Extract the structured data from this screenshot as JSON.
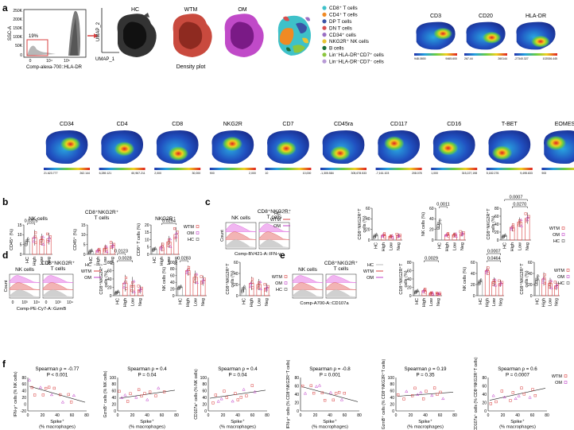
{
  "panels": {
    "a": "a",
    "b": "b",
    "c": "c",
    "d": "d",
    "e": "e",
    "f": "f"
  },
  "panel_a": {
    "facs": {
      "ylabel": "SSC-A",
      "yticks": [
        "250K",
        "200K",
        "150K",
        "100K",
        "50K",
        "0"
      ],
      "xlabel": "Comp-alexa-700::HLA-DR",
      "xticks": [
        "0",
        "10⁴",
        "10⁵"
      ],
      "gate": "19%"
    },
    "umap_x": "UMAP_1",
    "umap_y": "UMAP_2",
    "density_titles": [
      "HC",
      "WTM",
      "OM"
    ],
    "density_label": "Density plot",
    "legend": [
      "CD8⁺ T cells",
      "CD4⁺ T cells",
      "DP T cells",
      "DN T cells",
      "CD34⁺ cells",
      "NKG2R⁺ NK cells",
      "B cells",
      "Lin⁻HLA-DR⁺CD7⁺ cells",
      "Lin⁻HLA-DR⁻CD7⁻ cells"
    ],
    "legend_colors": [
      "#3ec1c9",
      "#f08a24",
      "#3a54a6",
      "#d94e4e",
      "#9a6fc4",
      "#e8c433",
      "#1a6e3a",
      "#8cc63f",
      "#b89ad6"
    ],
    "top_markers": [
      {
        "name": "CD3",
        "min": "948.0800",
        "max": "9465.600"
      },
      {
        "name": "CD20",
        "min": "267.44",
        "max": "260144"
      },
      {
        "name": "HLA-DR",
        "min": "-27340.327",
        "max": "102536.445"
      }
    ],
    "bottom_markers": [
      {
        "name": "CD34",
        "min": "21.623.777",
        "max": "262.144"
      },
      {
        "name": "CD4",
        "min": "6,289.121",
        "max": "60,967.211"
      },
      {
        "name": "CD8",
        "min": "2,000",
        "max": "30,000"
      },
      {
        "name": "NKG2R",
        "min": "900",
        "max": "2,000"
      },
      {
        "name": "CD7",
        "min": "10",
        "max": "10,000"
      },
      {
        "name": "CD45ra",
        "min": "-1,305.584",
        "max": "305,678.533"
      },
      {
        "name": "CD117",
        "min": "-7,161.103",
        "max": "208.078"
      },
      {
        "name": "CD16",
        "min": "1,000",
        "max": "315,227,198"
      },
      {
        "name": "T-BET",
        "min": "5,182.276",
        "max": "9,495.633"
      },
      {
        "name": "EOMES",
        "min": "900",
        "max": "2,180"
      }
    ]
  },
  "groups": [
    "HC",
    "High",
    "Low",
    "Neg"
  ],
  "legend_b": [
    "WTM",
    "OM",
    "HC"
  ],
  "panel_b": {
    "charts": [
      {
        "title": "NK cells",
        "ylabel": "CD45⁺ (%)",
        "yticks": [
          "0",
          "5",
          "10",
          "15"
        ],
        "ymax": 15,
        "values": [
          6.5,
          8.5,
          7.5,
          8.0
        ],
        "errs": [
          2,
          4,
          3,
          3
        ],
        "pvals": [
          {
            "text": "0.0315",
            "from": 0,
            "to": 1,
            "level": 0
          }
        ]
      },
      {
        "title": "CD8⁺NKG2R⁺\nT cells",
        "ylabel": "CD45⁺ (%)",
        "yticks": [
          "0",
          "5",
          "10",
          "15"
        ],
        "ymax": 15,
        "values": [
          1.5,
          2.0,
          3.0,
          4.5
        ],
        "errs": [
          1,
          1,
          2,
          2
        ],
        "pvals": []
      },
      {
        "title": "NKG2R⁺",
        "ylabel": "CD8⁺ T cells (%)",
        "yticks": [
          "0",
          "5",
          "10",
          "15",
          "20"
        ],
        "ymax": 20,
        "values": [
          3.5,
          5.0,
          8.5,
          13.5
        ],
        "errs": [
          1,
          3,
          4,
          5
        ],
        "pvals": [
          {
            "text": "0.0254",
            "from": 1,
            "to": 3,
            "level": 0
          }
        ]
      }
    ]
  },
  "panel_c": {
    "hist_titles": [
      "NK cells",
      "CD8⁺NKG2R⁺\nT cells"
    ],
    "hist_ylabel": "Count",
    "hist_xlabel": "Comp-BV421-A::IFN-γ",
    "charts": [
      {
        "title": "",
        "ylabel": "CD8⁺NKG2R⁺T\ncells (%)",
        "yticks": [
          "0",
          "20",
          "40",
          "60"
        ],
        "ymax": 60,
        "values": [
          8,
          9,
          7,
          8
        ],
        "errs": [
          4,
          5,
          3,
          4
        ],
        "pvals": []
      },
      {
        "title": "",
        "ylabel": "NK cells (%)",
        "yticks": [
          "0",
          "20",
          "40",
          "60"
        ],
        "ymax": 60,
        "values": [
          30,
          10,
          10,
          12
        ],
        "errs": [
          10,
          4,
          4,
          5
        ],
        "pvals": [
          {
            "text": "0.0011",
            "from": 0,
            "to": 1,
            "level": 0
          }
        ]
      },
      {
        "title": "",
        "ylabel": "CD8⁺NKG2R⁺T\ncells (%)",
        "yticks": [
          "0",
          "20",
          "40",
          "60",
          "80"
        ],
        "ymax": 80,
        "values": [
          10,
          32,
          45,
          55
        ],
        "errs": [
          4,
          10,
          12,
          14
        ],
        "pvals": [
          {
            "text": "0.0270",
            "from": 1,
            "to": 3,
            "level": 0
          },
          {
            "text": "0.0007",
            "from": 0,
            "to": 3,
            "level": 1
          }
        ]
      }
    ]
  },
  "panel_d": {
    "hist_titles": [
      "NK cells",
      "CD8⁺NKG2R⁺\nT cells"
    ],
    "hist_ylabel": "Count",
    "hist_xlabel": "Comp-PE-Cy7-A::GzmB",
    "hist_ticks": [
      "0",
      "10³",
      "10⁴"
    ],
    "charts": [
      {
        "title": "",
        "ylabel": "CD8⁺NKG2R⁺T\ncells (%)",
        "yticks": [
          "0",
          "20",
          "40",
          "60",
          "80"
        ],
        "ymax": 80,
        "values": [
          8,
          30,
          25,
          15
        ],
        "errs": [
          4,
          20,
          20,
          10
        ],
        "pvals": [
          {
            "text": "0.0028",
            "from": 0,
            "to": 2,
            "level": 0
          },
          {
            "text": "0.0123",
            "from": 0,
            "to": 1,
            "level": 1
          }
        ]
      },
      {
        "title": "",
        "ylabel": "NK cells (%)",
        "yticks": [
          "0",
          "20",
          "40",
          "60",
          "80",
          "100"
        ],
        "ymax": 100,
        "values": [
          25,
          75,
          55,
          45
        ],
        "errs": [
          5,
          15,
          20,
          15
        ],
        "pvals": [
          {
            "text": "0.0283",
            "from": 0,
            "to": 1,
            "level": 0
          }
        ]
      },
      {
        "title": "",
        "ylabel": "CD8⁺NKG2R⁺T\ncells (%)",
        "yticks": [
          "0",
          "20",
          "40",
          "60"
        ],
        "ymax": 60,
        "values": [
          12,
          22,
          20,
          14
        ],
        "errs": [
          6,
          12,
          10,
          8
        ],
        "pvals": []
      }
    ]
  },
  "panel_e": {
    "hist_titles": [
      "NK cells",
      "CD8⁺NKG2R⁺\nT cells"
    ],
    "hist_xlabel": "Comp-A700-A::CD107a",
    "charts": [
      {
        "title": "",
        "ylabel": "CD8⁺NKG2R⁺T\ncells (%)",
        "yticks": [
          "0",
          "20",
          "40",
          "60",
          "80"
        ],
        "ymax": 80,
        "values": [
          10,
          12,
          6,
          5
        ],
        "errs": [
          4,
          6,
          3,
          2
        ],
        "pvals": [
          {
            "text": "0.0029",
            "from": 1,
            "to": 3,
            "level": 0
          }
        ]
      },
      {
        "title": "",
        "ylabel": "NK cells (%)",
        "yticks": [
          "0",
          "20",
          "40",
          "60"
        ],
        "ymax": 60,
        "values": [
          25,
          45,
          25,
          22
        ],
        "errs": [
          5,
          8,
          8,
          6
        ],
        "pvals": [
          {
            "text": "0.0464",
            "from": 1,
            "to": 3,
            "level": 0
          },
          {
            "text": "0.0007",
            "from": 1,
            "to": 3,
            "level": 1
          }
        ]
      },
      {
        "title": "",
        "ylabel": "CD8⁺NKG2R⁺T\ncells (%)",
        "yticks": [
          "0",
          "20",
          "40",
          "60"
        ],
        "ymax": 60,
        "values": [
          28,
          30,
          22,
          18
        ],
        "errs": [
          10,
          12,
          10,
          8
        ],
        "pvals": []
      }
    ]
  },
  "panel_f": {
    "xlabel": "Spike⁺\n(% macrophages)",
    "legend": [
      "WTM",
      "OM"
    ],
    "charts": [
      {
        "stat": "Spearman ρ = -0.77",
        "p": "P < 0.001",
        "ylabel": "IFN-γ⁺ cells (% NK cells)",
        "xticks": [
          "0",
          "20",
          "40",
          "60",
          "80"
        ],
        "yticks": [
          "-20",
          "0",
          "20",
          "40",
          "60",
          "80"
        ],
        "slope": -0.8
      },
      {
        "stat": "Spearman ρ = 0.4",
        "p": "P = 0.04",
        "ylabel": "GzmB⁺ cells (% NK cells)",
        "xticks": [
          "0",
          "20",
          "40",
          "60",
          "80"
        ],
        "yticks": [
          "0",
          "20",
          "40",
          "60",
          "80",
          "100"
        ],
        "slope": 0.4
      },
      {
        "stat": "Spearman ρ = 0.4",
        "p": "P = 0.04",
        "ylabel": "CD107a⁺ cells (% NK cells)",
        "xticks": [
          "0",
          "20",
          "40",
          "60",
          "80"
        ],
        "yticks": [
          "0",
          "20",
          "40",
          "60",
          "80",
          "100"
        ],
        "slope": 0.4
      },
      {
        "stat": "Spearman ρ = -0.8",
        "p": "P = 0.001",
        "ylabel": "IFN-γ⁺ cells (% CD8⁺NKG2R⁺T cells)",
        "xticks": [
          "0",
          "20",
          "40",
          "60",
          "80"
        ],
        "yticks": [
          "0",
          "20",
          "40",
          "60",
          "80"
        ],
        "slope": -0.75
      },
      {
        "stat": "Spearman ρ = 0.19",
        "p": "P = 0.35",
        "ylabel": "GzmB⁺ cells (% CD8⁺NKG2R⁺T cells)",
        "xticks": [
          "0",
          "20",
          "40",
          "60",
          "80"
        ],
        "yticks": [
          "0",
          "20",
          "40",
          "60",
          "80",
          "100"
        ],
        "slope": 0.2
      },
      {
        "stat": "Spearman ρ = 0.6",
        "p": "P = 0.0007",
        "ylabel": "CD107a⁺ cells (% CD8⁺NKG2R⁺T cells)",
        "xticks": [
          "0",
          "20",
          "40",
          "60",
          "80"
        ],
        "yticks": [
          "0",
          "20",
          "40",
          "60",
          "80"
        ],
        "slope": 0.6
      }
    ]
  },
  "colors": {
    "wtm": "#d94040",
    "om": "#c040c8",
    "hc": "#555555",
    "accent": "#d94040"
  }
}
